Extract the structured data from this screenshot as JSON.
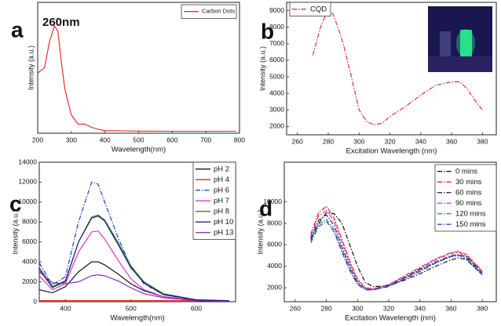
{
  "chart_data": [
    {
      "type": "line",
      "panel_label": "a",
      "annotation": "260nm",
      "x_label": "Wavelength(nm)",
      "y_label": "Intensity (a.u.)",
      "x": [
        200,
        220,
        235,
        250,
        260,
        270,
        280,
        290,
        300,
        320,
        340,
        360,
        380,
        400,
        450,
        500,
        600,
        700,
        790
      ],
      "series": [
        {
          "name": "Carbon Dots",
          "color": "#e02020",
          "line_style": "solid",
          "values": [
            0.46,
            0.5,
            0.7,
            0.82,
            0.78,
            0.55,
            0.35,
            0.24,
            0.14,
            0.07,
            0.07,
            0.045,
            0.03,
            0.02,
            0.018,
            0.016,
            0.015,
            0.015,
            0.015
          ]
        }
      ],
      "xlim": [
        200,
        800
      ],
      "ylim": [
        0,
        1
      ],
      "xticks": [
        200,
        300,
        400,
        500,
        600,
        700,
        800
      ],
      "legend": "upper right"
    },
    {
      "type": "line",
      "panel_label": "b",
      "x_label": "Excitation Wavelength (nm)",
      "y_label": "Intensity (a.u.)",
      "x": [
        270,
        272,
        275,
        280,
        283,
        287,
        290,
        295,
        300,
        305,
        310,
        315,
        320,
        330,
        340,
        350,
        360,
        365,
        370,
        375,
        380
      ],
      "series": [
        {
          "name": "CQD",
          "color": "#e02020",
          "line_style": "dash-dot",
          "values": [
            6300,
            7000,
            8000,
            9100,
            8800,
            7800,
            6900,
            5000,
            3000,
            2300,
            2100,
            2200,
            2600,
            3200,
            3900,
            4500,
            4700,
            4700,
            4300,
            3600,
            3000
          ]
        }
      ],
      "xlim": [
        253,
        389
      ],
      "ylim": [
        1500,
        9500
      ],
      "xticks": [
        260,
        280,
        300,
        320,
        340,
        360,
        380
      ],
      "yticks": [
        2000,
        3000,
        4000,
        5000,
        6000,
        7000,
        8000,
        9000
      ],
      "legend": "upper left"
    },
    {
      "type": "line",
      "panel_label": "c",
      "x_label": "Wavelength(nm)",
      "y_label": "Intensity (a.u.)",
      "x": [
        360,
        380,
        400,
        420,
        440,
        450,
        460,
        480,
        500,
        520,
        550,
        600,
        650
      ],
      "series": [
        {
          "name": "pH 2",
          "color": "#000000",
          "line_style": "solid",
          "values": [
            1200,
            900,
            1500,
            3000,
            4000,
            4000,
            3700,
            2800,
            1800,
            1100,
            500,
            100,
            50
          ]
        },
        {
          "name": "pH 4",
          "color": "#e01010",
          "line_style": "solid",
          "values": [
            100,
            100,
            100,
            100,
            100,
            100,
            100,
            100,
            100,
            100,
            100,
            100,
            100
          ]
        },
        {
          "name": "pH 6",
          "color": "#1030d0",
          "line_style": "dash-dot",
          "values": [
            3900,
            1700,
            2500,
            8000,
            12000,
            11800,
            10000,
            6500,
            3500,
            1800,
            700,
            150,
            50
          ]
        },
        {
          "name": "pH 7",
          "color": "#e020d0",
          "line_style": "solid",
          "values": [
            2600,
            1200,
            1800,
            5000,
            7000,
            7100,
            6300,
            4200,
            2300,
            1200,
            500,
            100,
            50
          ]
        },
        {
          "name": "pH 8",
          "color": "#208020",
          "line_style": "solid",
          "values": [
            3200,
            1400,
            2000,
            6000,
            8500,
            8700,
            8200,
            6000,
            3600,
            2000,
            800,
            200,
            100
          ]
        },
        {
          "name": "pH 10",
          "color": "#101070",
          "line_style": "solid",
          "values": [
            3400,
            1500,
            2100,
            6000,
            8400,
            8600,
            8100,
            5800,
            3400,
            1900,
            700,
            200,
            100
          ]
        },
        {
          "name": "pH 13",
          "color": "#8020c0",
          "line_style": "solid",
          "values": [
            3000,
            1900,
            1800,
            2000,
            2600,
            2700,
            2600,
            2100,
            1400,
            800,
            400,
            100,
            50
          ]
        }
      ],
      "xlim": [
        360,
        660
      ],
      "ylim": [
        0,
        14000
      ],
      "xticks": [
        400,
        500,
        600
      ],
      "yticks": [
        0,
        2000,
        4000,
        6000,
        8000,
        10000,
        12000,
        14000
      ],
      "legend": "upper right"
    },
    {
      "type": "line",
      "panel_label": "d",
      "x_label": "Excitation Wavelength (nm)",
      "y_label": "Intensity (a.u.)",
      "x": [
        270,
        275,
        280,
        285,
        290,
        295,
        300,
        305,
        310,
        320,
        330,
        340,
        350,
        360,
        365,
        370,
        380
      ],
      "series": [
        {
          "name": "0 mins",
          "color": "#000000",
          "line_style": "dash-dot",
          "values": [
            6500,
            8000,
            9000,
            8900,
            8000,
            6000,
            4000,
            2500,
            2100,
            2200,
            2700,
            3300,
            4000,
            4600,
            4800,
            4600,
            3200
          ]
        },
        {
          "name": "30 mins",
          "color": "#e01010",
          "line_style": "dash-dot",
          "values": [
            7000,
            9000,
            9600,
            8500,
            6500,
            4500,
            2800,
            2000,
            1900,
            2300,
            3000,
            3800,
            4600,
            5200,
            5300,
            5000,
            3500
          ]
        },
        {
          "name": "60 mins",
          "color": "#101070",
          "line_style": "dash-dot",
          "values": [
            6600,
            8300,
            8800,
            7800,
            5800,
            4000,
            2500,
            1900,
            1800,
            2200,
            2900,
            3700,
            4400,
            5000,
            5100,
            4900,
            3400
          ]
        },
        {
          "name": "90 mins",
          "color": "#e020d0",
          "line_style": "dash-dot",
          "values": [
            6800,
            8700,
            9200,
            8200,
            6200,
            4300,
            2700,
            2000,
            1900,
            2300,
            3100,
            3900,
            4700,
            5300,
            5400,
            5100,
            3600
          ]
        },
        {
          "name": "120 mins",
          "color": "#208060",
          "line_style": "dash-dot",
          "values": [
            6400,
            7900,
            8400,
            7400,
            5500,
            3800,
            2400,
            1900,
            1800,
            2200,
            2900,
            3600,
            4300,
            4900,
            5000,
            4800,
            3300
          ]
        },
        {
          "name": "150 mins",
          "color": "#3030c0",
          "line_style": "dash-dot",
          "values": [
            6200,
            7700,
            8200,
            7200,
            5300,
            3600,
            2300,
            1800,
            1800,
            2100,
            2800,
            3500,
            4300,
            4900,
            5000,
            4700,
            3200
          ]
        }
      ],
      "xlim": [
        253,
        389
      ],
      "ylim": [
        700,
        13700
      ],
      "xticks": [
        260,
        280,
        300,
        320,
        340,
        360,
        380
      ],
      "yticks": [
        2000,
        4000,
        6000,
        8000,
        10000
      ],
      "legend": "upper right"
    }
  ]
}
